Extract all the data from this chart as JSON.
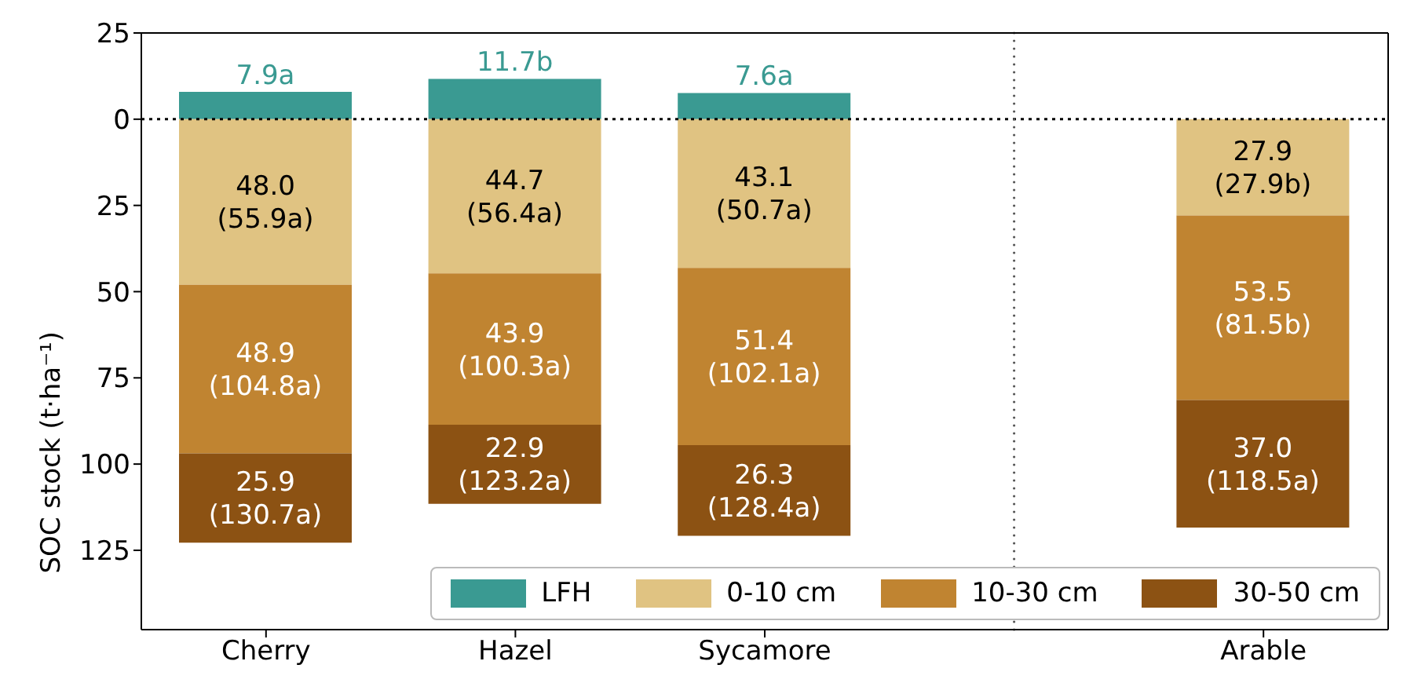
{
  "chart_data": {
    "type": "bar",
    "stacked": true,
    "ylabel": "SOC stock (t·ha⁻¹)",
    "categories": [
      "Cherry",
      "Hazel",
      "Sycamore",
      null,
      "Arable"
    ],
    "ylim": [
      148,
      -25
    ],
    "yticks": [
      {
        "value": -25,
        "label": "25"
      },
      0,
      25,
      50,
      75,
      100,
      125
    ],
    "series": [
      {
        "name": "LFH",
        "color": "#3a9a92",
        "values": [
          7.9,
          11.7,
          7.6,
          null,
          null
        ],
        "base": [
          -7.9,
          -11.7,
          -7.6,
          null,
          null
        ],
        "value_labels": [
          "7.9a",
          "11.7b",
          "7.6a",
          null,
          null
        ]
      },
      {
        "name": "0-10 cm",
        "color": "#e0c382",
        "values": [
          48.0,
          44.7,
          43.1,
          null,
          27.9
        ],
        "value_labels": [
          "48.0\n(55.9a)",
          "44.7\n(56.4a)",
          "43.1\n(50.7a)",
          null,
          "27.9\n(27.9b)"
        ]
      },
      {
        "name": "10-30 cm",
        "color": "#c08431",
        "values": [
          48.9,
          43.9,
          51.4,
          null,
          53.5
        ],
        "value_labels": [
          "48.9\n(104.8a)",
          "43.9\n(100.3a)",
          "51.4\n(102.1a)",
          null,
          "53.5\n(81.5b)"
        ]
      },
      {
        "name": "30-50 cm",
        "color": "#8c5213",
        "values": [
          25.9,
          22.9,
          26.3,
          null,
          37.0
        ],
        "value_labels": [
          "25.9\n(130.7a)",
          "22.9\n(123.2a)",
          "26.3\n(128.4a)",
          null,
          "37.0\n(118.5a)"
        ]
      }
    ],
    "ref_lines": [
      {
        "axis": "y",
        "value": 0,
        "line_style": "dotted",
        "color": "#000000"
      }
    ],
    "legend": "bottom right",
    "grid": false
  }
}
